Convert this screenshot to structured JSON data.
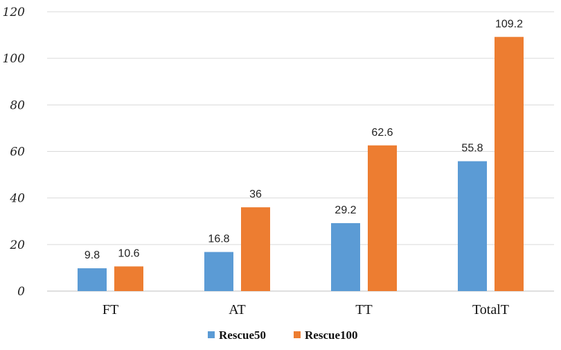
{
  "chart_data": {
    "type": "bar",
    "categories": [
      "FT",
      "AT",
      "TT",
      "TotalT"
    ],
    "series": [
      {
        "name": "Rescue50",
        "color": "#5b9bd5",
        "values": [
          9.8,
          16.8,
          29.2,
          55.8
        ]
      },
      {
        "name": "Rescue100",
        "color": "#ed7d31",
        "values": [
          10.6,
          36,
          62.6,
          109.2
        ]
      }
    ],
    "data_labels": [
      [
        "9.8",
        "16.8",
        "29.2",
        "55.8"
      ],
      [
        "10.6",
        "36",
        "62.6",
        "109.2"
      ]
    ],
    "title": "",
    "xlabel": "",
    "ylabel": "",
    "ylim": [
      0,
      120
    ],
    "yticks": [
      0,
      20,
      40,
      60,
      80,
      100,
      120
    ],
    "grid": true,
    "legend": "bottom-center"
  }
}
